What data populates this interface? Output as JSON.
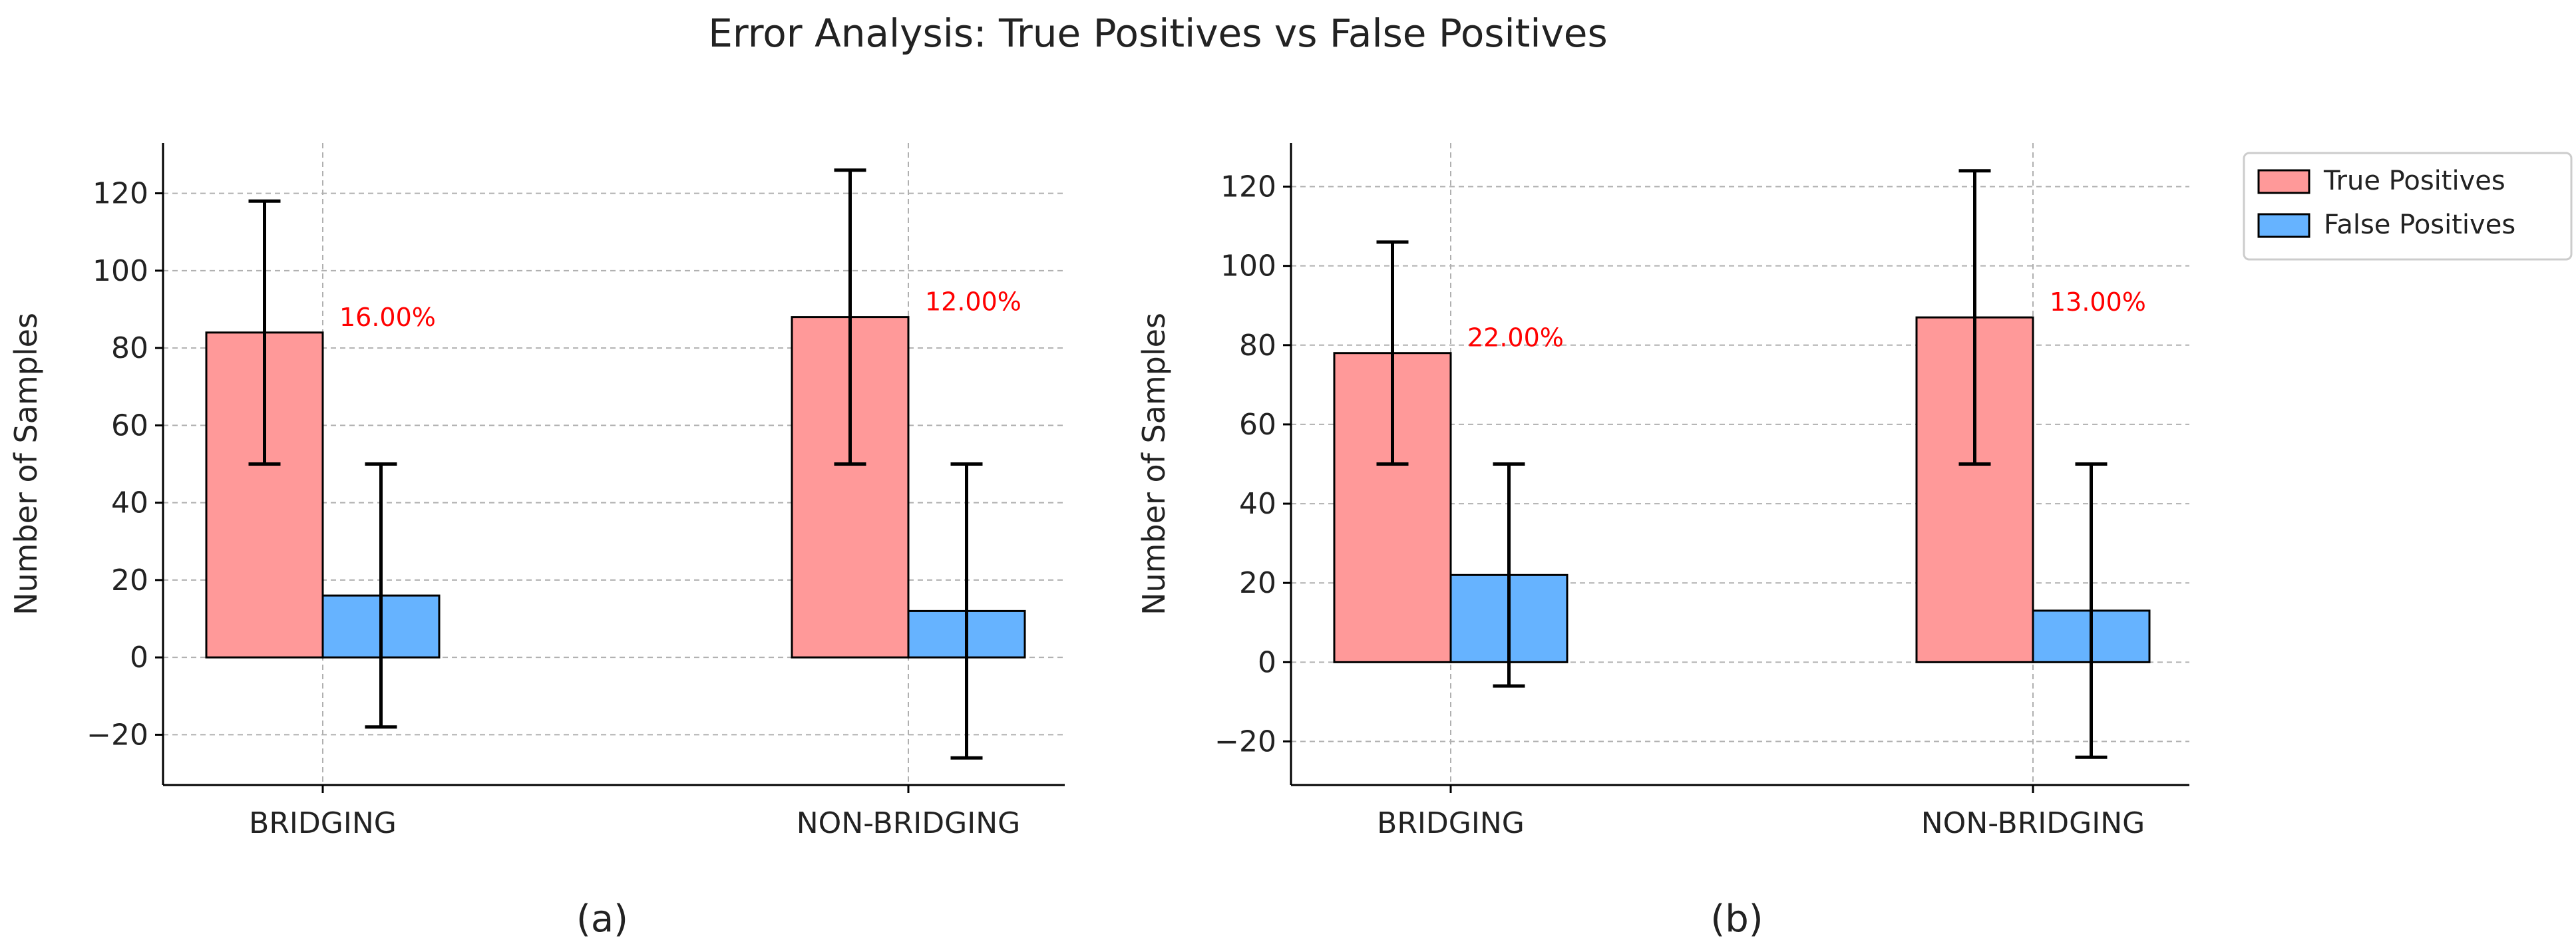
{
  "figure": {
    "title": "Error Analysis: True Positives vs False Positives"
  },
  "colors": {
    "true_positive": "#ff9999",
    "false_positive": "#66b3ff",
    "edge": "#000000",
    "annotation": "#ff0000",
    "grid": "#b0b0b0"
  },
  "chart_data": [
    {
      "type": "bar",
      "caption": "(a)",
      "ylabel": "Number of Samples",
      "xlabel": "",
      "ylim": [
        -33,
        133
      ],
      "yticks": [
        -20,
        0,
        20,
        40,
        60,
        80,
        100,
        120
      ],
      "ytick_labels": [
        "−20",
        "0",
        "20",
        "40",
        "60",
        "80",
        "100",
        "120"
      ],
      "categories": [
        "BRIDGING",
        "NON-BRIDGING"
      ],
      "grid": true,
      "series": [
        {
          "name": "True Positives",
          "color": "#ff9999",
          "values": [
            84,
            88
          ],
          "err_low": [
            50,
            50
          ],
          "err_high": [
            118,
            126
          ]
        },
        {
          "name": "False Positives",
          "color": "#66b3ff",
          "values": [
            16,
            12
          ],
          "err_low": [
            -18,
            -26
          ],
          "err_high": [
            50,
            50
          ]
        }
      ],
      "annotations": [
        "16.00%",
        "12.00%"
      ]
    },
    {
      "type": "bar",
      "caption": "(b)",
      "ylabel": "Number of Samples",
      "xlabel": "",
      "ylim": [
        -31,
        131
      ],
      "yticks": [
        -20,
        0,
        20,
        40,
        60,
        80,
        100,
        120
      ],
      "ytick_labels": [
        "−20",
        "0",
        "20",
        "40",
        "60",
        "80",
        "100",
        "120"
      ],
      "categories": [
        "BRIDGING",
        "NON-BRIDGING"
      ],
      "grid": true,
      "series": [
        {
          "name": "True Positives",
          "color": "#ff9999",
          "values": [
            78,
            87
          ],
          "err_low": [
            50,
            50
          ],
          "err_high": [
            106,
            124
          ]
        },
        {
          "name": "False Positives",
          "color": "#66b3ff",
          "values": [
            22,
            13
          ],
          "err_low": [
            -6,
            -24
          ],
          "err_high": [
            50,
            50
          ]
        }
      ],
      "annotations": [
        "22.00%",
        "13.00%"
      ]
    }
  ],
  "legend": {
    "position": "upper-right",
    "entries": [
      {
        "label": "True Positives",
        "color": "#ff9999"
      },
      {
        "label": "False Positives",
        "color": "#66b3ff"
      }
    ]
  }
}
